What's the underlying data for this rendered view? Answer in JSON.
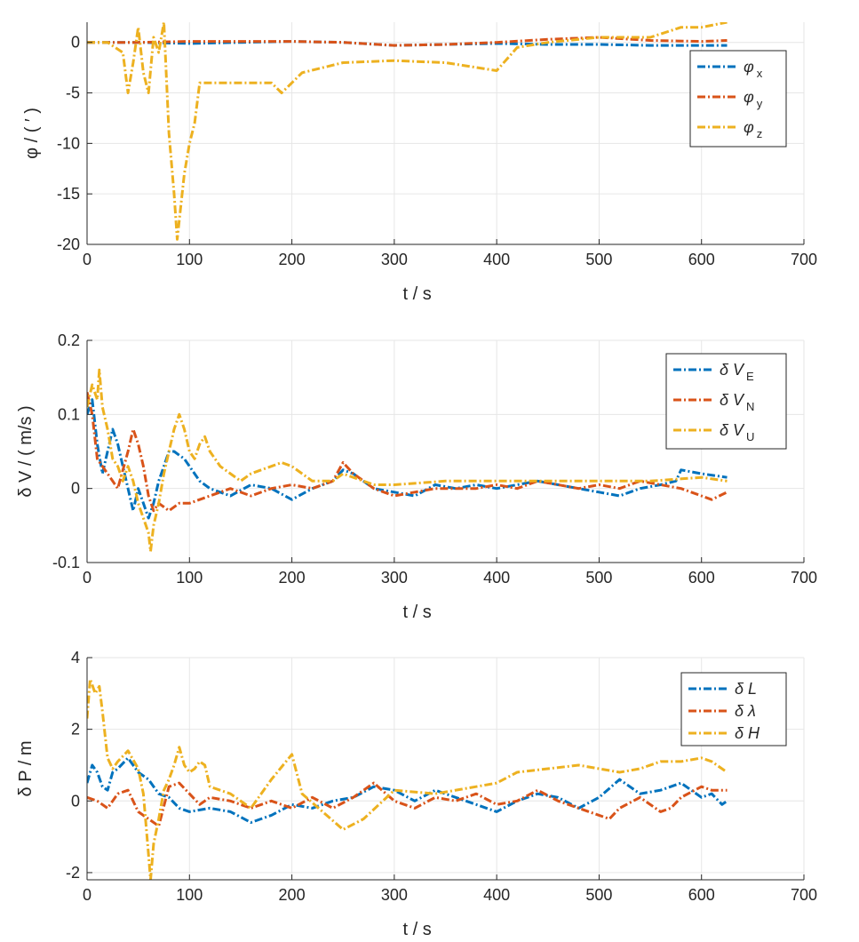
{
  "chart_data": [
    {
      "type": "line",
      "xlabel": "t / s",
      "ylabel": "φ / ( ′ )",
      "xlim": [
        0,
        700
      ],
      "ylim": [
        -20,
        2
      ],
      "xticks": [
        "0",
        "100",
        "200",
        "300",
        "400",
        "500",
        "600",
        "700"
      ],
      "yticks": [
        "-20",
        "-15",
        "-10",
        "-5",
        "0"
      ],
      "ytick_values": [
        -20,
        -15,
        -10,
        -5,
        0
      ],
      "grid": true,
      "legend_position": "top-right",
      "series": [
        {
          "name": "φx",
          "legend_base": "φ",
          "legend_sub": "x",
          "color": "#0072BD",
          "x": [
            0,
            50,
            100,
            150,
            200,
            250,
            300,
            350,
            400,
            450,
            500,
            550,
            600,
            625
          ],
          "y": [
            0,
            0,
            -0.1,
            0,
            0.1,
            0,
            -0.3,
            -0.2,
            -0.1,
            -0.2,
            -0.2,
            -0.3,
            -0.3,
            -0.3
          ]
        },
        {
          "name": "φy",
          "legend_base": "φ",
          "legend_sub": "y",
          "color": "#D95319",
          "x": [
            0,
            50,
            100,
            150,
            200,
            250,
            300,
            350,
            400,
            450,
            500,
            550,
            600,
            625
          ],
          "y": [
            0,
            0,
            0.1,
            0.1,
            0.1,
            0,
            -0.3,
            -0.2,
            0,
            0.3,
            0.5,
            0.2,
            0.1,
            0.2
          ]
        },
        {
          "name": "φz",
          "legend_base": "φ",
          "legend_sub": "z",
          "color": "#EDB120",
          "x": [
            0,
            20,
            35,
            40,
            45,
            50,
            55,
            60,
            65,
            70,
            75,
            80,
            85,
            88,
            95,
            100,
            105,
            110,
            120,
            150,
            180,
            190,
            200,
            210,
            250,
            300,
            350,
            400,
            420,
            450,
            500,
            550,
            580,
            600,
            625
          ],
          "y": [
            0,
            0,
            -1,
            -5,
            -2,
            1.5,
            -3,
            -5,
            0.5,
            -1,
            2,
            -9,
            -15,
            -19.5,
            -13,
            -10,
            -8,
            -4,
            -4,
            -4,
            -4,
            -5,
            -4,
            -3,
            -2,
            -1.8,
            -2,
            -2.8,
            -0.5,
            0,
            0.5,
            0.5,
            1.5,
            1.5,
            2
          ]
        }
      ]
    },
    {
      "type": "line",
      "xlabel": "t / s",
      "ylabel": "δ V / ( m/s )",
      "xlim": [
        0,
        700
      ],
      "ylim": [
        -0.1,
        0.2
      ],
      "xticks": [
        "0",
        "100",
        "200",
        "300",
        "400",
        "500",
        "600",
        "700"
      ],
      "yticks": [
        "-0.1",
        "0",
        "0.1",
        "0.2"
      ],
      "ytick_values": [
        -0.1,
        0,
        0.1,
        0.2
      ],
      "grid": true,
      "legend_position": "top-right",
      "series": [
        {
          "name": "δVE",
          "legend_base": "δ V",
          "legend_sub": "E",
          "color": "#0072BD",
          "x": [
            0,
            5,
            10,
            15,
            20,
            25,
            30,
            35,
            40,
            45,
            50,
            55,
            60,
            65,
            70,
            75,
            80,
            85,
            90,
            95,
            100,
            110,
            120,
            140,
            160,
            180,
            200,
            220,
            240,
            250,
            260,
            280,
            300,
            320,
            340,
            360,
            380,
            400,
            420,
            440,
            460,
            480,
            500,
            520,
            540,
            560,
            575,
            580,
            600,
            625
          ],
          "y": [
            0.1,
            0.12,
            0.06,
            0.02,
            0.05,
            0.08,
            0.06,
            0.03,
            0,
            -0.03,
            0,
            -0.02,
            -0.04,
            -0.02,
            0.01,
            0.03,
            0.05,
            0.05,
            0.045,
            0.04,
            0.03,
            0.01,
            0,
            -0.01,
            0.005,
            0.0,
            -0.015,
            0,
            0.01,
            0.025,
            0.02,
            0,
            -0.005,
            -0.01,
            0.005,
            0,
            0.005,
            0,
            0.005,
            0.01,
            0.005,
            0,
            -0.005,
            -0.01,
            0,
            0.005,
            0.01,
            0.025,
            0.02,
            0.015
          ]
        },
        {
          "name": "δVN",
          "legend_base": "δ V",
          "legend_sub": "N",
          "color": "#D95319",
          "x": [
            0,
            5,
            10,
            15,
            20,
            30,
            40,
            45,
            50,
            55,
            60,
            65,
            70,
            75,
            80,
            90,
            100,
            120,
            140,
            160,
            180,
            200,
            220,
            240,
            250,
            260,
            270,
            280,
            300,
            320,
            340,
            360,
            380,
            400,
            420,
            440,
            460,
            480,
            500,
            520,
            540,
            560,
            580,
            600,
            610,
            625
          ],
          "y": [
            0.13,
            0.1,
            0.04,
            0.03,
            0.02,
            0,
            0.05,
            0.08,
            0.06,
            0.03,
            -0.01,
            -0.03,
            -0.02,
            -0.025,
            -0.03,
            -0.02,
            -0.02,
            -0.01,
            0,
            -0.01,
            0,
            0.005,
            0,
            0.01,
            0.035,
            0.02,
            0.01,
            0,
            -0.01,
            -0.005,
            0,
            0,
            0,
            0.005,
            0,
            0.01,
            0.005,
            0,
            0.005,
            0,
            0.01,
            0.005,
            0,
            -0.01,
            -0.015,
            -0.005
          ]
        },
        {
          "name": "δVU",
          "legend_base": "δ V",
          "legend_sub": "U",
          "color": "#EDB120",
          "x": [
            0,
            5,
            10,
            12,
            15,
            20,
            25,
            30,
            35,
            40,
            45,
            50,
            55,
            60,
            62,
            65,
            70,
            75,
            80,
            85,
            90,
            95,
            100,
            105,
            110,
            115,
            120,
            130,
            140,
            150,
            160,
            170,
            180,
            190,
            200,
            210,
            220,
            240,
            250,
            260,
            270,
            280,
            300,
            350,
            400,
            450,
            500,
            550,
            600,
            625
          ],
          "y": [
            0.11,
            0.14,
            0.12,
            0.16,
            0.11,
            0.08,
            0.04,
            0.03,
            0.01,
            0.03,
            0.01,
            -0.02,
            -0.04,
            -0.06,
            -0.085,
            -0.05,
            -0.02,
            0.02,
            0.05,
            0.08,
            0.1,
            0.08,
            0.05,
            0.04,
            0.06,
            0.07,
            0.05,
            0.03,
            0.02,
            0.01,
            0.02,
            0.025,
            0.03,
            0.035,
            0.03,
            0.02,
            0.01,
            0.01,
            0.02,
            0.015,
            0.01,
            0.005,
            0.005,
            0.01,
            0.01,
            0.01,
            0.01,
            0.01,
            0.015,
            0.01
          ]
        }
      ]
    },
    {
      "type": "line",
      "xlabel": "t / s",
      "ylabel": "δ P / m",
      "xlim": [
        0,
        700
      ],
      "ylim": [
        -2.2,
        4
      ],
      "xticks": [
        "0",
        "100",
        "200",
        "300",
        "400",
        "500",
        "600",
        "700"
      ],
      "yticks": [
        "-2",
        "0",
        "2",
        "4"
      ],
      "ytick_values": [
        -2,
        0,
        2,
        4
      ],
      "grid": true,
      "legend_position": "top-right",
      "series": [
        {
          "name": "δL",
          "legend_base": "δ L",
          "legend_sub": "",
          "color": "#0072BD",
          "x": [
            0,
            5,
            10,
            15,
            20,
            25,
            30,
            40,
            50,
            60,
            70,
            80,
            90,
            100,
            120,
            140,
            160,
            180,
            200,
            220,
            240,
            260,
            280,
            300,
            320,
            340,
            360,
            380,
            400,
            420,
            440,
            460,
            480,
            500,
            520,
            540,
            560,
            580,
            600,
            610,
            620,
            625
          ],
          "y": [
            0.5,
            1,
            0.8,
            0.4,
            0.3,
            0.8,
            0.9,
            1.2,
            0.8,
            0.6,
            0.2,
            0.1,
            -0.2,
            -0.3,
            -0.2,
            -0.3,
            -0.6,
            -0.4,
            -0.1,
            -0.2,
            0,
            0.1,
            0.4,
            0.3,
            0,
            0.3,
            0.1,
            -0.1,
            -0.3,
            0,
            0.2,
            0.1,
            -0.2,
            0.1,
            0.6,
            0.2,
            0.3,
            0.5,
            0.1,
            0.2,
            -0.1,
            0
          ]
        },
        {
          "name": "δλ",
          "legend_base": "δ λ",
          "legend_sub": "",
          "color": "#D95319",
          "x": [
            0,
            10,
            20,
            30,
            40,
            50,
            60,
            70,
            80,
            90,
            100,
            110,
            120,
            140,
            160,
            180,
            200,
            220,
            240,
            260,
            280,
            300,
            320,
            340,
            360,
            380,
            400,
            420,
            440,
            460,
            480,
            500,
            510,
            520,
            540,
            560,
            570,
            580,
            600,
            610,
            625
          ],
          "y": [
            0.1,
            0,
            -0.2,
            0.2,
            0.3,
            -0.3,
            -0.5,
            -0.7,
            0.4,
            0.5,
            0.2,
            -0.1,
            0.1,
            0,
            -0.2,
            0,
            -0.2,
            0.1,
            -0.2,
            0.1,
            0.5,
            0,
            -0.2,
            0.1,
            0,
            0.2,
            -0.1,
            0,
            0.3,
            0,
            -0.2,
            -0.4,
            -0.5,
            -0.2,
            0.1,
            -0.3,
            -0.2,
            0.1,
            0.4,
            0.3,
            0.3
          ]
        },
        {
          "name": "δH",
          "legend_base": "δ H",
          "legend_sub": "",
          "color": "#EDB120",
          "x": [
            0,
            3,
            8,
            12,
            15,
            20,
            25,
            30,
            40,
            50,
            55,
            60,
            62,
            65,
            70,
            75,
            80,
            85,
            90,
            95,
            100,
            105,
            110,
            115,
            120,
            140,
            160,
            180,
            200,
            210,
            230,
            250,
            270,
            300,
            340,
            380,
            400,
            420,
            450,
            480,
            500,
            520,
            540,
            560,
            580,
            600,
            610,
            625
          ],
          "y": [
            2.3,
            3.4,
            3,
            3.2,
            2.5,
            1.2,
            0.9,
            1.1,
            1.4,
            0.9,
            0.2,
            -1.5,
            -2.2,
            -1.2,
            -0.5,
            0.3,
            0.6,
            1,
            1.5,
            1,
            0.8,
            0.9,
            1.1,
            1,
            0.4,
            0.2,
            -0.2,
            0.6,
            1.3,
            0.2,
            -0.3,
            -0.8,
            -0.5,
            0.3,
            0.2,
            0.4,
            0.5,
            0.8,
            0.9,
            1,
            0.9,
            0.8,
            0.9,
            1.1,
            1.1,
            1.2,
            1.1,
            0.8
          ]
        }
      ]
    }
  ]
}
